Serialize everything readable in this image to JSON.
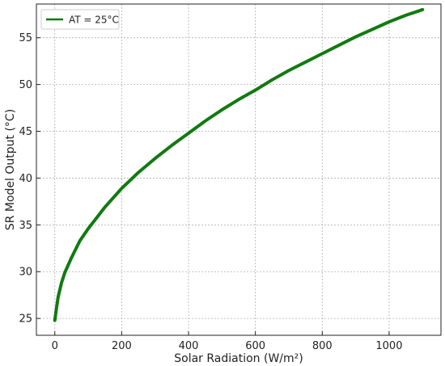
{
  "chart_data": {
    "type": "line",
    "title": "",
    "xlabel": "Solar Radiation (W/m²)",
    "ylabel": "SR Model Output (°C)",
    "xlim": [
      -55,
      1155
    ],
    "ylim": [
      23.2,
      58.6
    ],
    "xticks": [
      0,
      200,
      400,
      600,
      800,
      1000
    ],
    "yticks": [
      25,
      30,
      35,
      40,
      45,
      50,
      55
    ],
    "grid": true,
    "legend_position": "top-left",
    "series": [
      {
        "name": "AT = 25°C",
        "color": "#117a11",
        "x": [
          0,
          5,
          10,
          20,
          30,
          50,
          75,
          100,
          150,
          200,
          250,
          300,
          350,
          400,
          450,
          500,
          550,
          600,
          650,
          700,
          750,
          800,
          850,
          900,
          950,
          1000,
          1050,
          1100
        ],
        "y": [
          24.8,
          26.1,
          27.3,
          28.8,
          29.9,
          31.5,
          33.3,
          34.6,
          36.9,
          38.9,
          40.6,
          42.1,
          43.5,
          44.8,
          46.1,
          47.3,
          48.4,
          49.4,
          50.5,
          51.5,
          52.4,
          53.3,
          54.2,
          55.1,
          55.9,
          56.7,
          57.4,
          58.0
        ]
      }
    ]
  }
}
